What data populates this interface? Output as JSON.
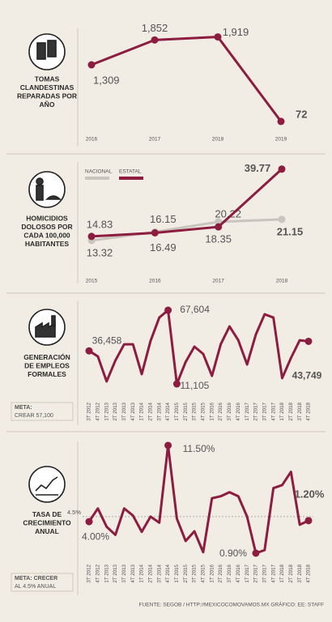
{
  "chart_data": [
    {
      "type": "line",
      "title": [
        "TOMAS",
        "CLANDESTINAS",
        "REPARADAS POR",
        "AÑO"
      ],
      "categories": [
        "2016",
        "2017",
        "2018",
        "2019"
      ],
      "series": [
        {
          "name": null,
          "color": "#8c1d40",
          "values": [
            1309,
            1852,
            1919,
            72
          ],
          "value_labels": [
            "1,309",
            "1,852",
            "1,919",
            "72"
          ]
        }
      ],
      "ylim": [
        0,
        2000
      ]
    },
    {
      "type": "line",
      "title": [
        "HOMICIDIOS",
        "DOLOSOS POR",
        "CADA 100,000",
        "HABITANTES"
      ],
      "categories": [
        "2015",
        "2016",
        "2017",
        "2018"
      ],
      "series": [
        {
          "name": "NACIONAL",
          "color": "#c9c4be",
          "values": [
            13.32,
            16.49,
            20.22,
            21.15
          ],
          "value_labels": [
            "13.32",
            "16.49",
            "20.22",
            "21.15"
          ]
        },
        {
          "name": "ESTATAL",
          "color": "#8c1d40",
          "values": [
            14.83,
            16.15,
            18.35,
            39.77
          ],
          "value_labels": [
            "14.83",
            "16.15",
            "18.35",
            "39.77"
          ]
        }
      ],
      "ylim": [
        10,
        40
      ],
      "legend": "top-left"
    },
    {
      "type": "line",
      "title": [
        "GENERACIÓN",
        "DE EMPLEOS",
        "FORMALES"
      ],
      "meta": [
        "META:",
        "CREAR 57,100"
      ],
      "categories": [
        "3T 2012",
        "4T 2012",
        "1T 2013",
        "2T 2013",
        "3T 2013",
        "4T 2013",
        "1T 2014",
        "2T 2014",
        "3T 2014",
        "4T 2014",
        "1T 2015",
        "2T 2015",
        "3T 2015",
        "4T 2015",
        "1T 2016",
        "2T 2016",
        "3T 2016",
        "4T 2016",
        "1T 2017",
        "2T 2017",
        "3T 2017",
        "4T 2017",
        "1T 2018",
        "2T 2018",
        "3T 2018",
        "4T 2018"
      ],
      "series": [
        {
          "name": null,
          "color": "#8c1d40",
          "values": [
            36458,
            32200,
            13000,
            29100,
            41500,
            41500,
            18600,
            44000,
            62000,
            67604,
            11105,
            27900,
            39700,
            34100,
            17300,
            41500,
            55200,
            44600,
            26000,
            49000,
            64500,
            62000,
            15500,
            31000,
            44600,
            43749
          ],
          "value_labels": [
            "36,458",
            null,
            null,
            null,
            null,
            null,
            null,
            null,
            null,
            "67,604",
            "11,105",
            null,
            null,
            null,
            null,
            null,
            null,
            null,
            null,
            null,
            null,
            null,
            null,
            null,
            null,
            "43,749"
          ]
        }
      ],
      "ylim": [
        0,
        70000
      ]
    },
    {
      "type": "line",
      "title": [
        "TASA DE",
        "CRECIMIENTO",
        "ANUAL"
      ],
      "meta": [
        "META: CRECER",
        "AL 4.5% ANUAL"
      ],
      "reference": {
        "value": 4.5,
        "label": "4.5%"
      },
      "annotations": [
        "1.20%"
      ],
      "categories": [
        "3T 2012",
        "4T 2012",
        "1T 2013",
        "2T 2013",
        "3T 2013",
        "4T 2013",
        "1T 2014",
        "2T 2014",
        "3T 2014",
        "4T 2014",
        "1T 2015",
        "2T 2015",
        "3T 2015",
        "4T 2015",
        "1T 2016",
        "2T 2016",
        "3T 2016",
        "4T 2016",
        "1T 2017",
        "2T 2017",
        "3T 2017",
        "4T 2017",
        "1T 2018",
        "2T 2018",
        "3T 2018",
        "4T 2018"
      ],
      "series": [
        {
          "name": null,
          "color": "#8c1d40",
          "values": [
            4.0,
            5.3,
            3.5,
            2.7,
            5.3,
            4.6,
            3.0,
            4.5,
            3.9,
            11.5,
            4.3,
            2.1,
            3.05,
            1.0,
            6.3,
            6.5,
            6.9,
            6.5,
            4.5,
            0.9,
            1.2,
            7.3,
            7.6,
            8.9,
            3.7,
            4.1
          ],
          "value_labels": [
            "4.00%",
            null,
            null,
            null,
            null,
            null,
            null,
            null,
            null,
            "11.50%",
            null,
            null,
            null,
            null,
            null,
            null,
            null,
            null,
            null,
            "0.90%",
            null,
            null,
            null,
            null,
            null,
            null
          ]
        }
      ],
      "ylim": [
        0,
        12
      ]
    }
  ],
  "footer": "FUENTE: SEGOB / HTTP://MEXICOCOMOVAMOS.MX GRÁFICO: EE: STAFF"
}
